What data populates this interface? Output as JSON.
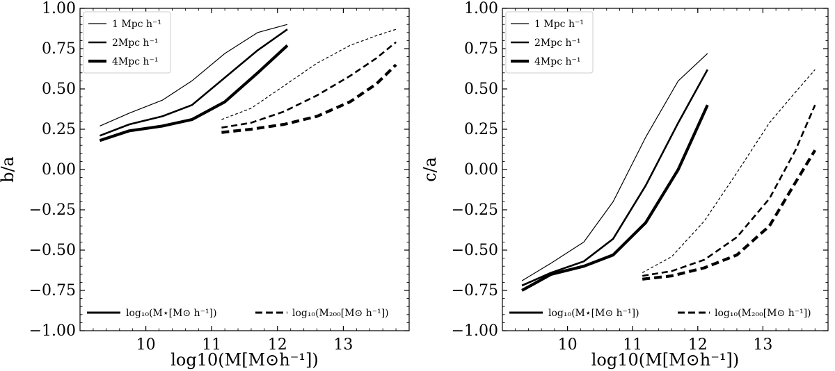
{
  "chart_data": [
    {
      "type": "line",
      "panel": "left",
      "xlabel": "log10(M[M⊙h⁻¹])",
      "ylabel": "b/a",
      "xlim": [
        9.0,
        14.0
      ],
      "ylim": [
        -1.0,
        1.0
      ],
      "xticks": [
        10,
        11,
        12,
        13
      ],
      "xtick_labels": [
        "10",
        "11",
        "12",
        "13"
      ],
      "yticks": [
        -1.0,
        -0.75,
        -0.5,
        -0.25,
        0.0,
        0.25,
        0.5,
        0.75,
        1.0
      ],
      "ytick_labels": [
        "−1.00",
        "−0.75",
        "−0.50",
        "−0.25",
        "0.00",
        "0.25",
        "0.50",
        "0.75",
        "1.00"
      ],
      "legend_scale": {
        "placement": "top-left",
        "entries": [
          "1 Mpc h⁻¹",
          "2Mpc h⁻¹",
          "4Mpc h⁻¹"
        ]
      },
      "legend_mass": {
        "placement": "bottom",
        "entries": [
          "log₁₀(M⋆[M⊙ h⁻¹])",
          "log₁₀(M₂₀₀[M⊙ h⁻¹])"
        ]
      },
      "series": [
        {
          "name": "stellar 1 Mpc",
          "style": "solid",
          "weight": 1,
          "x": [
            9.3,
            9.75,
            10.25,
            10.7,
            11.2,
            11.7,
            12.15
          ],
          "y": [
            0.27,
            0.35,
            0.43,
            0.55,
            0.72,
            0.85,
            0.9
          ]
        },
        {
          "name": "stellar 2 Mpc",
          "style": "solid",
          "weight": 2,
          "x": [
            9.3,
            9.75,
            10.25,
            10.7,
            11.2,
            11.7,
            12.15
          ],
          "y": [
            0.21,
            0.28,
            0.33,
            0.4,
            0.57,
            0.74,
            0.87
          ]
        },
        {
          "name": "stellar 4 Mpc",
          "style": "solid",
          "weight": 3,
          "x": [
            9.3,
            9.75,
            10.25,
            10.7,
            11.2,
            11.7,
            12.15
          ],
          "y": [
            0.18,
            0.24,
            0.27,
            0.31,
            0.42,
            0.6,
            0.77
          ]
        },
        {
          "name": "halo 1 Mpc",
          "style": "dashed",
          "weight": 1,
          "x": [
            11.15,
            11.6,
            12.1,
            12.6,
            13.1,
            13.5,
            13.8
          ],
          "y": [
            0.31,
            0.38,
            0.52,
            0.66,
            0.77,
            0.83,
            0.87
          ]
        },
        {
          "name": "halo 2 Mpc",
          "style": "dashed",
          "weight": 2,
          "x": [
            11.15,
            11.6,
            12.1,
            12.6,
            13.1,
            13.5,
            13.8
          ],
          "y": [
            0.26,
            0.29,
            0.36,
            0.46,
            0.58,
            0.69,
            0.79
          ]
        },
        {
          "name": "halo 4 Mpc",
          "style": "dashed",
          "weight": 3,
          "x": [
            11.15,
            11.6,
            12.1,
            12.6,
            13.1,
            13.5,
            13.8
          ],
          "y": [
            0.23,
            0.25,
            0.28,
            0.33,
            0.42,
            0.53,
            0.65
          ]
        }
      ]
    },
    {
      "type": "line",
      "panel": "right",
      "xlabel": "log10(M[M⊙h⁻¹])",
      "ylabel": "c/a",
      "xlim": [
        9.0,
        14.0
      ],
      "ylim": [
        -1.0,
        1.0
      ],
      "xticks": [
        10,
        11,
        12,
        13
      ],
      "xtick_labels": [
        "10",
        "11",
        "12",
        "13"
      ],
      "yticks": [
        -1.0,
        -0.75,
        -0.5,
        -0.25,
        0.0,
        0.25,
        0.5,
        0.75,
        1.0
      ],
      "ytick_labels": [
        "−1.00",
        "−0.75",
        "−0.50",
        "−0.25",
        "0.00",
        "0.25",
        "0.50",
        "0.75",
        "1.00"
      ],
      "legend_scale": {
        "placement": "top-left",
        "entries": [
          "1 Mpc h⁻¹",
          "2Mpc h⁻¹",
          "4Mpc h⁻¹"
        ]
      },
      "legend_mass": {
        "placement": "bottom",
        "entries": [
          "log₁₀(M⋆[M⊙ h⁻¹])",
          "log₁₀(M₂₀₀[M⊙ h⁻¹])"
        ]
      },
      "series": [
        {
          "name": "stellar 1 Mpc",
          "style": "solid",
          "weight": 1,
          "x": [
            9.3,
            9.75,
            10.25,
            10.7,
            11.2,
            11.7,
            12.15
          ],
          "y": [
            -0.69,
            -0.58,
            -0.45,
            -0.2,
            0.2,
            0.55,
            0.72
          ]
        },
        {
          "name": "stellar 2 Mpc",
          "style": "solid",
          "weight": 2,
          "x": [
            9.3,
            9.75,
            10.25,
            10.7,
            11.2,
            11.7,
            12.15
          ],
          "y": [
            -0.72,
            -0.64,
            -0.57,
            -0.43,
            -0.1,
            0.29,
            0.62
          ]
        },
        {
          "name": "stellar 4 Mpc",
          "style": "solid",
          "weight": 3,
          "x": [
            9.3,
            9.75,
            10.25,
            10.7,
            11.2,
            11.7,
            12.15
          ],
          "y": [
            -0.75,
            -0.65,
            -0.6,
            -0.53,
            -0.33,
            0.0,
            0.4
          ]
        },
        {
          "name": "halo 1 Mpc",
          "style": "dashed",
          "weight": 1,
          "x": [
            11.15,
            11.6,
            12.1,
            12.6,
            13.1,
            13.5,
            13.8
          ],
          "y": [
            -0.64,
            -0.54,
            -0.32,
            -0.02,
            0.29,
            0.48,
            0.62
          ]
        },
        {
          "name": "halo 2 Mpc",
          "style": "dashed",
          "weight": 2,
          "x": [
            11.15,
            11.6,
            12.1,
            12.6,
            13.1,
            13.5,
            13.8
          ],
          "y": [
            -0.66,
            -0.63,
            -0.56,
            -0.42,
            -0.18,
            0.12,
            0.4
          ]
        },
        {
          "name": "halo 4 Mpc",
          "style": "dashed",
          "weight": 3,
          "x": [
            11.15,
            11.6,
            12.1,
            12.6,
            13.1,
            13.5,
            13.8
          ],
          "y": [
            -0.68,
            -0.66,
            -0.61,
            -0.53,
            -0.35,
            -0.08,
            0.12
          ]
        }
      ]
    }
  ]
}
